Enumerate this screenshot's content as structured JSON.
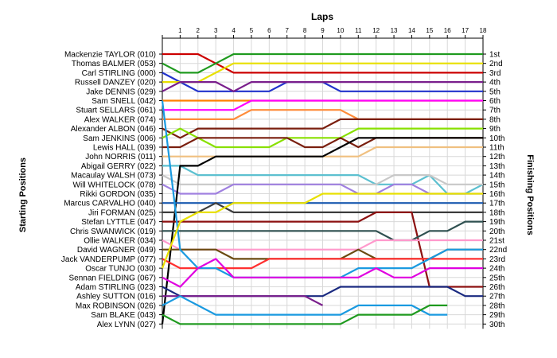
{
  "chart_data": {
    "type": "line",
    "title": "Laps",
    "ylabel_left": "Starting Positions",
    "ylabel_right": "Finishing Positions",
    "laps": [
      1,
      2,
      3,
      4,
      5,
      6,
      7,
      8,
      9,
      10,
      11,
      12,
      13,
      14,
      15,
      16,
      17,
      18
    ],
    "drivers": [
      "Mackenzie TAYLOR (010)",
      "Thomas BALMER (053)",
      "Carl STIRLING (000)",
      "Russell DANZEY (020)",
      "Jake DENNIS (029)",
      "Sam SNELL (042)",
      "Stuart SELLARS (061)",
      "Alex WALKER (074)",
      "Alexander ALBON (046)",
      "Sam JENKINS (006)",
      "Lewis HALL (039)",
      "John NORRIS (011)",
      "Abigail GERRY (022)",
      "Macaulay WALSH (073)",
      "Will WHITELOCK (078)",
      "Rikki GORDON (035)",
      "Marcus CARVALHO (040)",
      "Jiri FORMAN (025)",
      "Stefan LYTTLE (047)",
      "Chris SWANWICK (019)",
      "Ollie WALKER (034)",
      "David WAGNER (049)",
      "Jack VANDERPUMP (077)",
      "Oscar TUNJO (030)",
      "Sennan FIELDING (067)",
      "Adam STIRLING (023)",
      "Ashley SUTTON (016)",
      "Max ROBINSON (026)",
      "Sam BLAKE (043)",
      "Alex LYNN (027)"
    ],
    "finishing_labels": [
      "1st",
      "2nd",
      "3rd",
      "4th",
      "5th",
      "6th",
      "7th",
      "8th",
      "9th",
      "10th",
      "11th",
      "12th",
      "13th",
      "14th",
      "15th",
      "16th",
      "17th",
      "18th",
      "19th",
      "20th",
      "21st",
      "22nd",
      "23rd",
      "24th",
      "25th",
      "26th",
      "27th",
      "28th",
      "29th",
      "30th"
    ],
    "series": [
      {
        "color": "#cc0000",
        "positions": [
          1,
          1,
          1,
          2,
          3,
          3,
          3,
          3,
          3,
          3,
          3,
          3,
          3,
          3,
          3,
          3,
          3,
          3,
          3
        ]
      },
      {
        "color": "#1f9a1f",
        "positions": [
          2,
          3,
          3,
          2,
          1,
          1,
          1,
          1,
          1,
          1,
          1,
          1,
          1,
          1,
          1,
          1,
          1,
          1,
          1
        ]
      },
      {
        "color": "#2233cc",
        "positions": [
          3,
          4,
          5,
          5,
          5,
          5,
          5,
          4,
          4,
          4,
          5,
          5,
          5,
          5,
          5,
          5,
          5,
          5,
          5
        ]
      },
      {
        "color": "#e8e000",
        "positions": [
          4,
          4,
          4,
          3,
          2,
          2,
          2,
          2,
          2,
          2,
          2,
          2,
          2,
          2,
          2,
          2,
          2,
          2,
          2
        ]
      },
      {
        "color": "#7a1f8c",
        "positions": [
          5,
          4,
          4,
          4,
          5,
          4,
          4,
          4,
          4,
          4,
          4,
          4,
          4,
          4,
          4,
          4,
          4,
          4,
          4
        ]
      },
      {
        "color": "#ff8000",
        "positions": [
          6,
          6,
          6,
          6,
          6,
          6,
          6,
          6,
          6,
          6,
          6,
          6,
          6,
          6,
          6,
          6,
          6,
          6,
          6
        ]
      },
      {
        "color": "#ff00ff",
        "positions": [
          7,
          7,
          7,
          7,
          7,
          6,
          6,
          6,
          6,
          6,
          6,
          6,
          6,
          6,
          6,
          6,
          6,
          6,
          6
        ]
      },
      {
        "color": "#ff8c3a",
        "positions": [
          8,
          8,
          8,
          8,
          8,
          7,
          7,
          7,
          7,
          7,
          7,
          8,
          8,
          8,
          8,
          8,
          8,
          8,
          8
        ]
      },
      {
        "color": "#7a1f0f",
        "positions": [
          9,
          10,
          9,
          9,
          9,
          9,
          9,
          9,
          9,
          9,
          8,
          8,
          8,
          8,
          8,
          8,
          8,
          8,
          8
        ]
      },
      {
        "color": "#88e000",
        "positions": [
          10,
          9,
          10,
          11,
          11,
          11,
          11,
          10,
          10,
          10,
          10,
          9,
          9,
          9,
          9,
          9,
          9,
          9,
          9
        ]
      },
      {
        "color": "#7a1f0f",
        "positions": [
          11,
          11,
          10,
          10,
          10,
          10,
          10,
          10,
          11,
          11,
          10,
          11,
          10,
          10,
          10,
          10,
          10,
          10,
          10
        ]
      },
      {
        "color": "#f0c080",
        "positions": [
          12,
          12,
          12,
          12,
          12,
          12,
          12,
          12,
          12,
          12,
          12,
          12,
          11,
          11,
          11,
          11,
          11,
          11,
          11
        ]
      },
      {
        "color": "#5cc0d0",
        "positions": [
          13,
          13,
          14,
          14,
          14,
          14,
          14,
          14,
          14,
          14,
          14,
          14,
          15,
          15,
          15,
          14,
          16,
          16,
          15
        ]
      },
      {
        "color": "#c8c8c8",
        "positions": [
          14,
          15,
          15,
          15,
          15,
          15,
          15,
          15,
          15,
          15,
          15,
          15,
          15,
          14,
          14,
          14,
          15,
          15,
          15
        ]
      },
      {
        "color": "#a080e0",
        "positions": [
          15,
          16,
          16,
          16,
          15,
          15,
          15,
          15,
          15,
          15,
          15,
          16,
          16,
          15,
          15,
          16,
          16,
          16,
          16
        ]
      },
      {
        "color": "#000000",
        "positions": [
          30,
          13,
          13,
          12,
          12,
          12,
          12,
          12,
          12,
          12,
          11,
          10,
          10,
          10,
          10,
          10,
          10,
          10,
          10
        ]
      },
      {
        "color": "#1a5ab0",
        "positions": [
          17,
          17,
          17,
          17,
          17,
          17,
          17,
          17,
          17,
          17,
          17,
          17,
          17,
          17,
          17,
          17,
          17,
          17,
          17
        ]
      },
      {
        "color": "#3c3c3c",
        "positions": [
          18,
          18,
          18,
          17,
          18,
          18,
          18,
          18,
          18,
          18,
          18,
          18,
          18,
          18,
          18,
          18,
          18,
          18,
          18
        ]
      },
      {
        "color": "#8c1010",
        "positions": [
          19,
          19,
          19,
          19,
          19,
          19,
          19,
          19,
          19,
          19,
          19,
          19,
          18,
          18,
          18,
          26,
          26,
          26,
          26
        ]
      },
      {
        "color": "#2f5050",
        "positions": [
          20,
          20,
          20,
          20,
          20,
          20,
          20,
          20,
          20,
          20,
          20,
          20,
          20,
          21,
          21,
          20,
          20,
          19,
          19
        ]
      },
      {
        "color": "#ff99cc",
        "positions": [
          21,
          22,
          22,
          22,
          22,
          22,
          22,
          22,
          22,
          22,
          22,
          22,
          21,
          21,
          21,
          21,
          21,
          21,
          21
        ]
      },
      {
        "color": "#6a4a10",
        "positions": [
          22,
          22,
          22,
          22,
          23,
          23,
          23,
          23,
          23,
          23,
          23,
          22,
          23,
          23,
          23,
          23,
          22,
          22,
          22
        ]
      },
      {
        "color": "#ff3030",
        "positions": [
          23,
          24,
          24,
          24,
          24,
          24,
          23,
          23,
          23,
          23,
          23,
          23,
          23,
          23,
          23,
          23,
          23,
          23,
          23
        ]
      },
      {
        "color": "#1a9ae0",
        "positions": [
          6,
          22,
          24,
          24,
          25,
          25,
          25,
          25,
          25,
          25,
          25,
          24,
          24,
          24,
          24,
          23,
          22,
          22,
          22
        ]
      },
      {
        "color": "#e8e000",
        "positions": [
          24,
          19,
          18,
          18,
          17,
          17,
          17,
          17,
          17,
          16,
          16,
          16,
          16,
          16,
          16,
          16,
          16,
          16,
          16
        ]
      },
      {
        "color": "#e000e0",
        "positions": [
          25,
          26,
          24,
          23,
          25,
          25,
          25,
          25,
          25,
          25,
          25,
          25,
          24,
          25,
          25,
          24,
          24,
          24,
          24
        ]
      },
      {
        "color": "#1a2a80",
        "positions": [
          26,
          27,
          27,
          27,
          27,
          27,
          27,
          27,
          27,
          27,
          26,
          26,
          26,
          26,
          26,
          26,
          26,
          27,
          27
        ]
      },
      {
        "color": "#7a1f8c",
        "positions": [
          27,
          27,
          27,
          27,
          27,
          27,
          27,
          27,
          27,
          28,
          null,
          null,
          null,
          null,
          null,
          null,
          null,
          null,
          null
        ]
      },
      {
        "color": "#1a9ae0",
        "positions": [
          28,
          27,
          28,
          29,
          29,
          29,
          29,
          29,
          29,
          29,
          29,
          28,
          28,
          28,
          28,
          29,
          29,
          null,
          null
        ]
      },
      {
        "color": "#1f9a1f",
        "positions": [
          29,
          30,
          30,
          30,
          30,
          30,
          30,
          30,
          30,
          30,
          30,
          29,
          29,
          29,
          29,
          28,
          28,
          null,
          null
        ]
      }
    ]
  }
}
